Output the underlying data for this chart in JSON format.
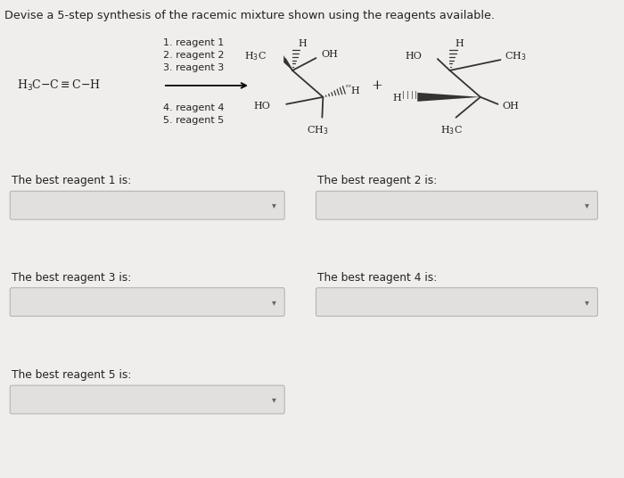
{
  "title": "Devise a 5-step synthesis of the racemic mixture shown using the reagents available.",
  "background_color": "#f0eeec",
  "reagents_above": [
    "1. reagent 1",
    "2. reagent 2",
    "3. reagent 3"
  ],
  "reagents_below": [
    "4. reagent 4",
    "5. reagent 5"
  ],
  "labels": [
    "The best reagent 1 is:",
    "The best reagent 2 is:",
    "The best reagent 3 is:",
    "The best reagent 4 is:",
    "The best reagent 5 is:"
  ],
  "text_color": "#222222",
  "box_facecolor": "#e2e0de",
  "box_edgecolor": "#b0aeac",
  "sm_text": "H₃C—C≡C—H"
}
